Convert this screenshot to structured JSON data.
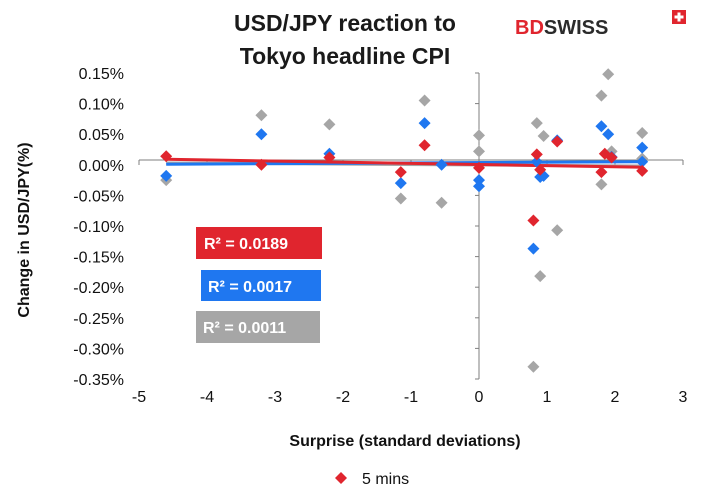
{
  "logo": {
    "text_a": "BD",
    "text_b": "SWISS",
    "color_a": "#e0252e",
    "color_b": "#2b2b2b"
  },
  "chart_data": {
    "type": "scatter",
    "title_line1": "USD/JPY reaction to",
    "title_line2": "Tokyo headline CPI",
    "xlabel": "Surprise (standard deviations)",
    "ylabel": "Change in USD/JPY(%)",
    "xlim": [
      -5,
      3
    ],
    "ylim": [
      -0.35,
      0.15
    ],
    "x_ticks": [
      -5,
      -4,
      -3,
      -2,
      -1,
      0,
      1,
      2,
      3
    ],
    "x_tick_labels": [
      "-5",
      "-4",
      "-3",
      "-2",
      "-1",
      "0",
      "1",
      "2",
      "3"
    ],
    "y_ticks": [
      0.15,
      0.1,
      0.05,
      0.0,
      -0.05,
      -0.1,
      -0.15,
      -0.2,
      -0.25,
      -0.3,
      -0.35
    ],
    "y_tick_labels": [
      "0.15%",
      "0.10%",
      "0.05%",
      "0.00%",
      "-0.05%",
      "-0.10%",
      "-0.15%",
      "-0.20%",
      "-0.25%",
      "-0.30%",
      "-0.35%"
    ],
    "grid": false,
    "legend_position": "bottom",
    "legend": [
      {
        "label": "5 mins",
        "color": "#e0252e"
      }
    ],
    "series": [
      {
        "name": "5 mins",
        "color": "#e0252e",
        "points": [
          [
            -4.6,
            0.014
          ],
          [
            -3.2,
            0.0
          ],
          [
            -2.2,
            0.012
          ],
          [
            -1.15,
            -0.012
          ],
          [
            -0.8,
            0.032
          ],
          [
            0.0,
            -0.005
          ],
          [
            0.8,
            -0.091
          ],
          [
            0.85,
            0.017
          ],
          [
            0.9,
            -0.008
          ],
          [
            1.15,
            0.038
          ],
          [
            1.8,
            -0.012
          ],
          [
            1.85,
            0.018
          ],
          [
            1.95,
            0.012
          ],
          [
            2.4,
            -0.01
          ]
        ],
        "trend": {
          "x": [
            -4.6,
            2.4
          ],
          "y": [
            0.009,
            -0.004
          ]
        },
        "r2": "R² = 0.0189"
      },
      {
        "color": "#1f77f0",
        "points": [
          [
            -4.6,
            -0.018
          ],
          [
            -3.2,
            0.05
          ],
          [
            -2.2,
            0.018
          ],
          [
            -1.15,
            -0.03
          ],
          [
            -0.8,
            0.068
          ],
          [
            -0.55,
            0.0
          ],
          [
            0.0,
            -0.025
          ],
          [
            0.0,
            -0.035
          ],
          [
            0.8,
            -0.137
          ],
          [
            0.85,
            0.005
          ],
          [
            0.9,
            -0.02
          ],
          [
            0.95,
            -0.018
          ],
          [
            1.15,
            0.04
          ],
          [
            1.8,
            0.063
          ],
          [
            1.9,
            0.05
          ],
          [
            1.95,
            0.013
          ],
          [
            2.4,
            0.028
          ],
          [
            2.4,
            0.005
          ]
        ],
        "trend": {
          "x": [
            -4.6,
            2.4
          ],
          "y": [
            0.001,
            0.005
          ]
        },
        "r2": "R² = 0.0017"
      },
      {
        "color": "#a6a6a6",
        "points": [
          [
            -4.6,
            -0.025
          ],
          [
            -3.2,
            0.081
          ],
          [
            -2.2,
            0.066
          ],
          [
            -1.15,
            -0.055
          ],
          [
            -0.8,
            0.105
          ],
          [
            -0.55,
            -0.062
          ],
          [
            0.0,
            0.048
          ],
          [
            0.0,
            0.022
          ],
          [
            0.8,
            -0.33
          ],
          [
            0.85,
            0.068
          ],
          [
            0.9,
            -0.182
          ],
          [
            0.95,
            0.047
          ],
          [
            1.15,
            -0.107
          ],
          [
            1.8,
            0.113
          ],
          [
            1.8,
            -0.032
          ],
          [
            1.9,
            0.148
          ],
          [
            1.95,
            0.022
          ],
          [
            2.4,
            0.052
          ],
          [
            2.4,
            0.01
          ]
        ],
        "trend": {
          "x": [
            -4.6,
            2.4
          ],
          "y": [
            0.003,
            -0.002
          ]
        },
        "r2": "R² = 0.0011"
      }
    ]
  }
}
